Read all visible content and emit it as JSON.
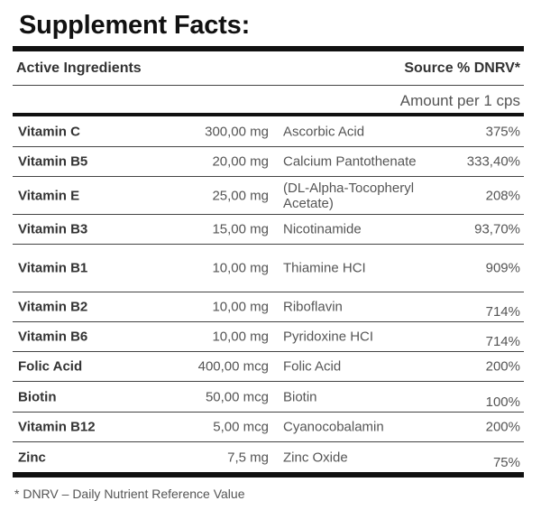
{
  "title": "Supplement Facts:",
  "header": {
    "active_ingredients": "Active Ingredients",
    "source_dnrv": "Source % DNRV*",
    "amount_per": "Amount per 1 cps"
  },
  "rows": [
    {
      "name": "Vitamin C",
      "amount": "300,00 mg",
      "source": "Ascorbic Acid",
      "dnrv": "375%"
    },
    {
      "name": "Vitamin B5",
      "amount": "20,00 mg",
      "source": "Calcium Pantothenate",
      "dnrv": "333,40%"
    },
    {
      "name": "Vitamin E",
      "amount": "25,00 mg",
      "source": "(DL-Alpha-Tocopheryl Acetate)",
      "dnrv": "208%"
    },
    {
      "name": "Vitamin B3",
      "amount": "15,00 mg",
      "source": "Nicotinamide",
      "dnrv": "93,70%"
    },
    {
      "name": "Vitamin B1",
      "amount": "10,00 mg",
      "source": "Thiamine HCI",
      "dnrv": "909%"
    },
    {
      "name": "Vitamin B2",
      "amount": "10,00 mg",
      "source": "Riboflavin",
      "dnrv": "714%"
    },
    {
      "name": "Vitamin B6",
      "amount": "10,00 mg",
      "source": "Pyridoxine HCI",
      "dnrv": "714%"
    },
    {
      "name": "Folic Acid",
      "amount": "400,00 mcg",
      "source": "Folic Acid",
      "dnrv": "200%"
    },
    {
      "name": "Biotin",
      "amount": "50,00 mcg",
      "source": "Biotin",
      "dnrv": "100%"
    },
    {
      "name": "Vitamin B12",
      "amount": "5,00 mcg",
      "source": "Cyanocobalamin",
      "dnrv": "200%"
    },
    {
      "name": "Zinc",
      "amount": "7,5 mg",
      "source": "Zinc Oxide",
      "dnrv": "75%"
    }
  ],
  "footnote": "* DNRV – Daily Nutrient Reference Value"
}
